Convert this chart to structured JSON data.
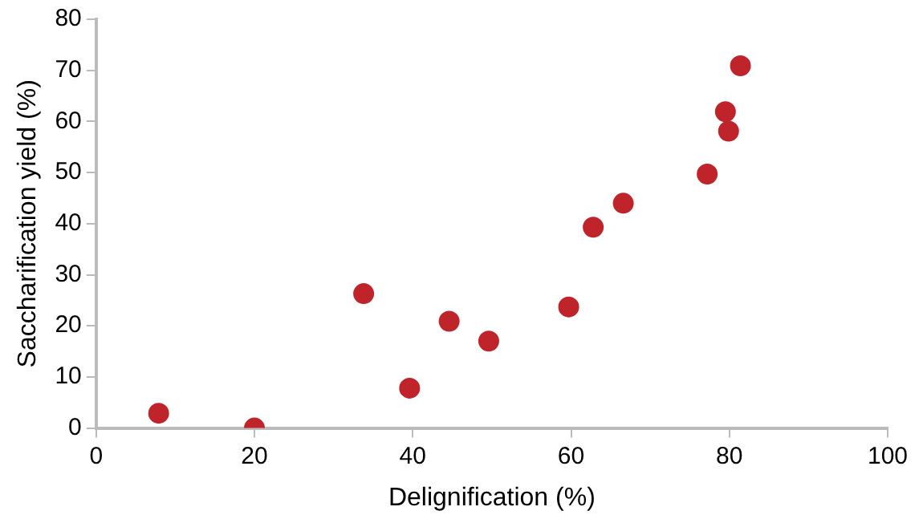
{
  "chart_data": {
    "type": "scatter",
    "xlabel": "Delignification (%)",
    "ylabel": "Saccharification yield (%)",
    "x": [
      7.9,
      20,
      33.8,
      39.6,
      44.6,
      49.6,
      59.7,
      62.8,
      66.6,
      77.2,
      79.5,
      79.9,
      81.4
    ],
    "values": [
      2.9,
      0,
      26.3,
      7.8,
      20.9,
      17,
      23.7,
      39.3,
      44,
      49.7,
      61.9,
      58.1,
      70.9
    ],
    "color": "#c0242b",
    "marker": "circle",
    "xlim": [
      0,
      100
    ],
    "xticks": [
      0,
      20,
      40,
      60,
      80,
      100
    ],
    "ylim": [
      0,
      80
    ],
    "yticks": [
      0,
      10,
      20,
      30,
      40,
      50,
      60,
      70,
      80
    ],
    "grid": false,
    "legend": false
  }
}
